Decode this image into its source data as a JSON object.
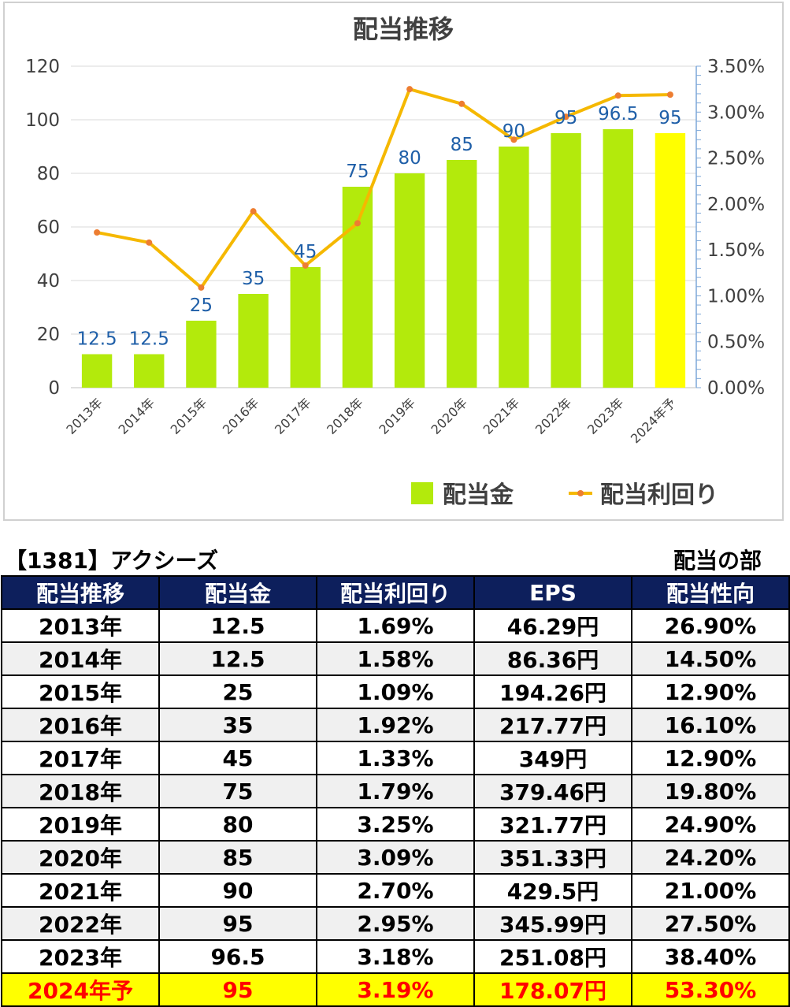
{
  "chart_data": {
    "type": "bar",
    "title": "配当推移",
    "categories": [
      "2013年",
      "2014年",
      "2015年",
      "2016年",
      "2017年",
      "2018年",
      "2019年",
      "2020年",
      "2021年",
      "2022年",
      "2023年",
      "2024年予"
    ],
    "series": [
      {
        "name": "配当金",
        "type": "bar",
        "axis": "left",
        "values": [
          12.5,
          12.5,
          25,
          35,
          45,
          75,
          80,
          85,
          90,
          95,
          96.5,
          95
        ],
        "labels": [
          "12.5",
          "12.5",
          "25",
          "35",
          "45",
          "75",
          "80",
          "85",
          "90",
          "95",
          "96.5",
          "95"
        ],
        "color": "#b3ea0c",
        "highlight_last_color": "#ffff00"
      },
      {
        "name": "配当利回り",
        "type": "line",
        "axis": "right",
        "values": [
          1.69,
          1.58,
          1.09,
          1.92,
          1.33,
          1.79,
          3.25,
          3.09,
          2.7,
          2.95,
          3.18,
          3.19
        ],
        "color": "#f5b800",
        "marker_color": "#ed7d31"
      }
    ],
    "ylim_left": [
      0,
      120
    ],
    "yticks_left": [
      "0",
      "20",
      "40",
      "60",
      "80",
      "100",
      "120"
    ],
    "ylim_right": [
      0,
      3.5
    ],
    "yticks_right": [
      "0.00%",
      "0.50%",
      "1.00%",
      "1.50%",
      "2.00%",
      "2.50%",
      "3.00%",
      "3.50%"
    ],
    "grid": true,
    "legend": "bottom-right"
  },
  "table": {
    "heading": "【1381】アクシーズ",
    "section": "配当の部",
    "columns": [
      "配当推移",
      "配当金",
      "配当利回り",
      "EPS",
      "配当性向"
    ],
    "rows": [
      [
        "2013年",
        "12.5",
        "1.69%",
        "46.29円",
        "26.90%"
      ],
      [
        "2014年",
        "12.5",
        "1.58%",
        "86.36円",
        "14.50%"
      ],
      [
        "2015年",
        "25",
        "1.09%",
        "194.26円",
        "12.90%"
      ],
      [
        "2016年",
        "35",
        "1.92%",
        "217.77円",
        "16.10%"
      ],
      [
        "2017年",
        "45",
        "1.33%",
        "349円",
        "12.90%"
      ],
      [
        "2018年",
        "75",
        "1.79%",
        "379.46円",
        "19.80%"
      ],
      [
        "2019年",
        "80",
        "3.25%",
        "321.77円",
        "24.90%"
      ],
      [
        "2020年",
        "85",
        "3.09%",
        "351.33円",
        "24.20%"
      ],
      [
        "2021年",
        "90",
        "2.70%",
        "429.5円",
        "21.00%"
      ],
      [
        "2022年",
        "95",
        "2.95%",
        "345.99円",
        "27.50%"
      ],
      [
        "2023年",
        "96.5",
        "3.18%",
        "251.08円",
        "38.40%"
      ],
      [
        "2024年予",
        "95",
        "3.19%",
        "178.07円",
        "53.30%"
      ]
    ]
  }
}
